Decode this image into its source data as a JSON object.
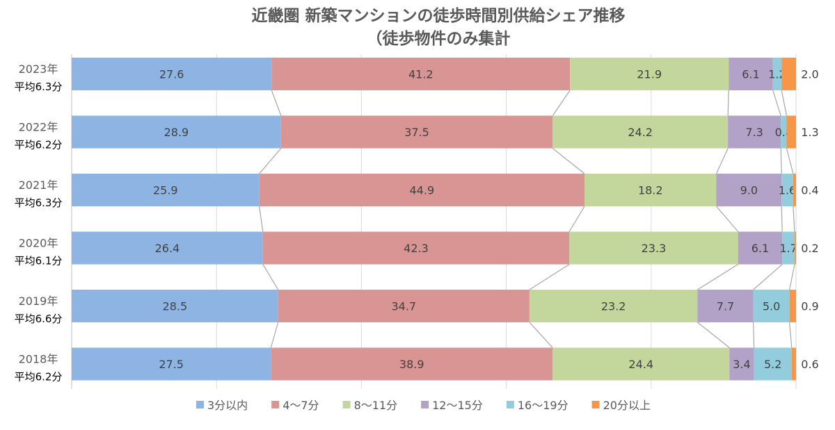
{
  "chart_data": {
    "type": "bar",
    "stacked": true,
    "orientation": "horizontal",
    "title": "近畿圏 新築マンションの徒歩時間別供給シェア推移",
    "subtitle": "（徒歩物件のみ集計",
    "categories": [
      "2023年",
      "2022年",
      "2021年",
      "2020年",
      "2019年",
      "2018年"
    ],
    "category_sublabels": [
      "平均6.3分",
      "平均6.2分",
      "平均6.3分",
      "平均6.1分",
      "平均6.6分",
      "平均6.2分"
    ],
    "series": [
      {
        "name": "3分以内",
        "color": "#8eb4e3",
        "values": [
          27.6,
          28.9,
          25.9,
          26.4,
          28.5,
          27.5
        ]
      },
      {
        "name": "4～7分",
        "color": "#d99594",
        "values": [
          41.2,
          37.5,
          44.9,
          42.3,
          34.7,
          38.9
        ]
      },
      {
        "name": "8～11分",
        "color": "#c3d69b",
        "values": [
          21.9,
          24.2,
          18.2,
          23.3,
          23.2,
          24.4
        ]
      },
      {
        "name": "12～15分",
        "color": "#b3a2c7",
        "values": [
          6.1,
          7.3,
          9.0,
          6.1,
          7.7,
          3.4
        ]
      },
      {
        "name": "16～19分",
        "color": "#93cddd",
        "values": [
          1.2,
          0.8,
          1.6,
          1.7,
          5.0,
          5.2
        ]
      },
      {
        "name": "20分以上",
        "color": "#f79646",
        "values": [
          2.0,
          1.3,
          0.4,
          0.2,
          0.9,
          0.6
        ]
      }
    ],
    "xlim": [
      0,
      100
    ],
    "grid": true,
    "legend": "bottom"
  }
}
